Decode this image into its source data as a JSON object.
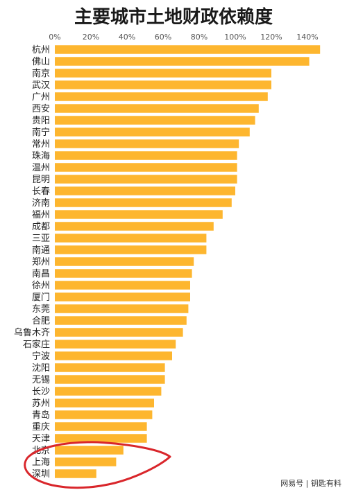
{
  "chart_data": {
    "type": "bar",
    "orientation": "horizontal",
    "title": "主要城市土地财政依赖度",
    "xlim": [
      0,
      150
    ],
    "x_ticks": [
      0,
      20,
      40,
      60,
      80,
      100,
      120,
      140
    ],
    "x_tick_labels": [
      "0%",
      "20%",
      "40%",
      "60%",
      "80%",
      "100%",
      "120%",
      "140%"
    ],
    "grid": false,
    "bar_color": "#FDB62F",
    "categories": [
      "杭州",
      "佛山",
      "南京",
      "武汉",
      "广州",
      "西安",
      "贵阳",
      "南宁",
      "常州",
      "珠海",
      "温州",
      "昆明",
      "长春",
      "济南",
      "福州",
      "成都",
      "三亚",
      "南通",
      "郑州",
      "南昌",
      "徐州",
      "厦门",
      "东莞",
      "合肥",
      "乌鲁木齐",
      "石家庄",
      "宁波",
      "沈阳",
      "无锡",
      "长沙",
      "苏州",
      "青岛",
      "重庆",
      "天津",
      "北京",
      "上海",
      "深圳"
    ],
    "values": [
      147,
      141,
      120,
      120,
      118,
      113,
      111,
      108,
      102,
      101,
      101,
      101,
      100,
      98,
      93,
      88,
      84,
      84,
      77,
      76,
      75,
      75,
      74,
      73,
      71,
      67,
      65,
      61,
      61,
      59,
      55,
      54,
      51,
      51,
      38,
      34,
      23
    ]
  },
  "annotation": {
    "color": "#D9262B"
  },
  "watermark": {
    "text": "网易号 | 钥匙有料"
  }
}
